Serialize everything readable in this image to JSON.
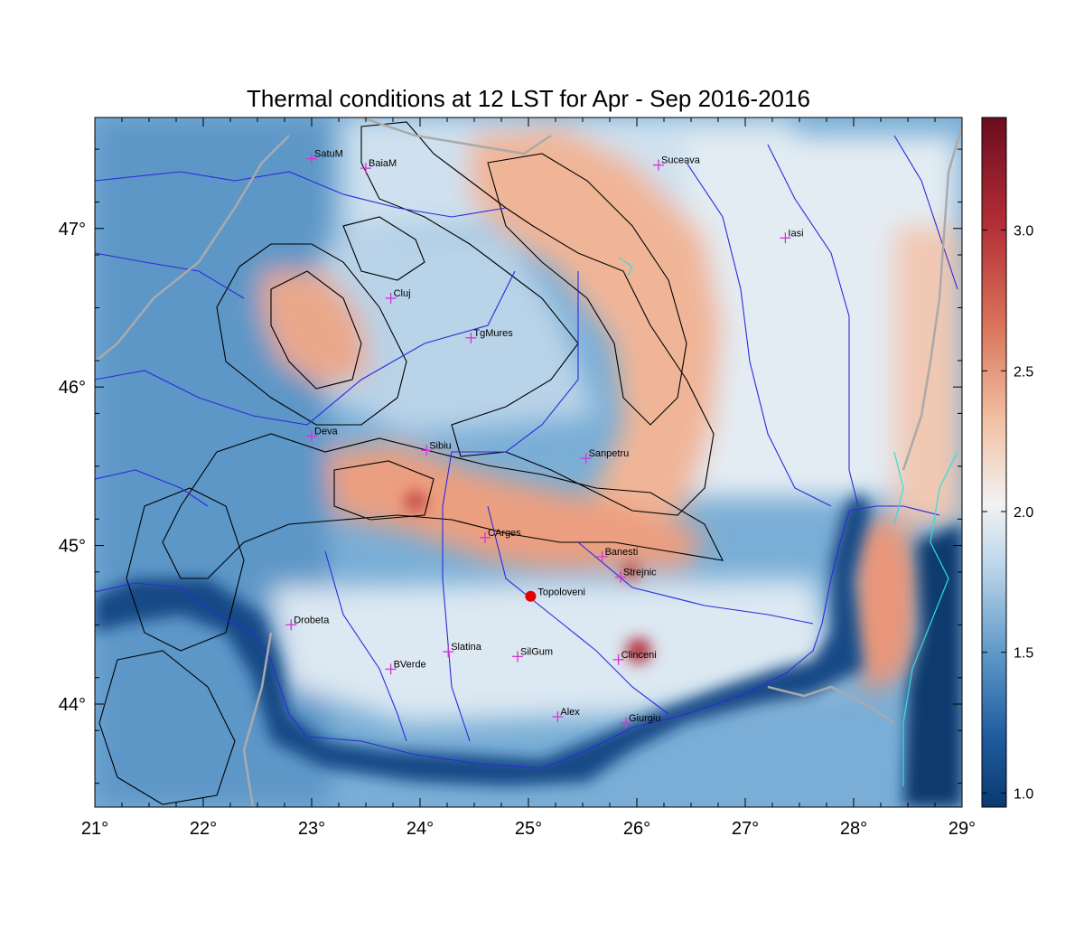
{
  "title": "Thermal conditions at 12 LST for Apr - Sep  2016-2016",
  "map": {
    "lon_range": [
      21,
      29
    ],
    "lat_range": [
      43.35,
      47.7
    ],
    "lon_ticks": [
      {
        "value": 21,
        "label": "21°"
      },
      {
        "value": 22,
        "label": "22°"
      },
      {
        "value": 23,
        "label": "23°"
      },
      {
        "value": 24,
        "label": "24°"
      },
      {
        "value": 25,
        "label": "25°"
      },
      {
        "value": 26,
        "label": "26°"
      },
      {
        "value": 27,
        "label": "27°"
      },
      {
        "value": 28,
        "label": "28°"
      },
      {
        "value": 29,
        "label": "29°"
      }
    ],
    "lat_ticks": [
      {
        "value": 44,
        "label": "44°"
      },
      {
        "value": 45,
        "label": "45°"
      },
      {
        "value": 46,
        "label": "46°"
      },
      {
        "value": 47,
        "label": "47°"
      }
    ],
    "colors": {
      "low": "#0b3a70",
      "mid": "#f2f2f2",
      "high": "#6b0d1e",
      "river": "#2b2bdc",
      "border": "#aaaaaa",
      "contour": "#000000",
      "city_marker": "#d633d6",
      "station": "#e60000",
      "lake": "#33dddd"
    }
  },
  "cities": [
    {
      "name": "SatuM",
      "lon": 23.0,
      "lat": 47.44
    },
    {
      "name": "BaiaM",
      "lon": 23.5,
      "lat": 47.38
    },
    {
      "name": "Suceava",
      "lon": 26.2,
      "lat": 47.4
    },
    {
      "name": "Iasi",
      "lon": 27.37,
      "lat": 46.94
    },
    {
      "name": "Cluj",
      "lon": 23.73,
      "lat": 46.56
    },
    {
      "name": "TgMures",
      "lon": 24.47,
      "lat": 46.31
    },
    {
      "name": "Deva",
      "lon": 23.0,
      "lat": 45.69
    },
    {
      "name": "Sibiu",
      "lon": 24.06,
      "lat": 45.6
    },
    {
      "name": "Sanpetru",
      "lon": 25.53,
      "lat": 45.55
    },
    {
      "name": "CArges",
      "lon": 24.6,
      "lat": 45.05
    },
    {
      "name": "Banesti",
      "lon": 25.68,
      "lat": 44.93
    },
    {
      "name": "Strejnic",
      "lon": 25.85,
      "lat": 44.8
    },
    {
      "name": "Drobeta",
      "lon": 22.81,
      "lat": 44.5
    },
    {
      "name": "Slatina",
      "lon": 24.26,
      "lat": 44.33
    },
    {
      "name": "SilGum",
      "lon": 24.9,
      "lat": 44.3
    },
    {
      "name": "Clinceni",
      "lon": 25.83,
      "lat": 44.28
    },
    {
      "name": "BVerde",
      "lon": 23.73,
      "lat": 44.22
    },
    {
      "name": "Alex",
      "lon": 25.27,
      "lat": 43.92
    },
    {
      "name": "Giurgiu",
      "lon": 25.9,
      "lat": 43.88
    }
  ],
  "station": {
    "name": "Topoloveni",
    "lon": 25.02,
    "lat": 44.68
  },
  "colorbar": {
    "min": 0.95,
    "max": 3.4,
    "ticks": [
      {
        "value": 1.0,
        "label": "1.0"
      },
      {
        "value": 1.5,
        "label": "1.5"
      },
      {
        "value": 2.0,
        "label": "2.0"
      },
      {
        "value": 2.5,
        "label": "2.5"
      },
      {
        "value": 3.0,
        "label": "3.0"
      }
    ]
  }
}
